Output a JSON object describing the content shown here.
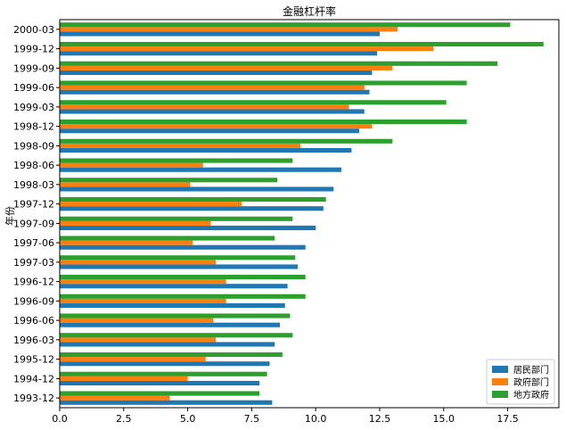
{
  "chart_data": {
    "type": "bar",
    "orientation": "horizontal",
    "title": "金融杠杆率",
    "xlabel": "",
    "ylabel": "年份",
    "xlim": [
      0,
      19.5
    ],
    "xticks": [
      "0.0",
      "2.5",
      "5.0",
      "7.5",
      "10.0",
      "12.5",
      "15.0",
      "17.5"
    ],
    "grid": false,
    "legend_position": "bottom-right",
    "categories": [
      "1993-12",
      "1994-12",
      "1995-12",
      "1996-03",
      "1996-06",
      "1996-09",
      "1996-12",
      "1997-03",
      "1997-06",
      "1997-09",
      "1997-12",
      "1998-03",
      "1998-06",
      "1998-09",
      "1998-12",
      "1999-03",
      "1999-06",
      "1999-09",
      "1999-12",
      "2000-03"
    ],
    "series": [
      {
        "name": "居民部门",
        "color": "#1f77b4",
        "values": [
          8.3,
          7.8,
          8.2,
          8.4,
          8.6,
          8.8,
          8.9,
          9.3,
          9.6,
          10.0,
          10.3,
          10.7,
          11.0,
          11.4,
          11.7,
          11.9,
          12.1,
          12.2,
          12.4,
          12.5
        ]
      },
      {
        "name": "政府部门",
        "color": "#ff7f0e",
        "values": [
          4.3,
          5.0,
          5.7,
          6.1,
          6.0,
          6.5,
          6.5,
          6.1,
          5.2,
          5.9,
          7.1,
          5.1,
          5.6,
          9.4,
          12.2,
          11.3,
          11.9,
          13.0,
          14.6,
          13.2
        ]
      },
      {
        "name": "地方政府",
        "color": "#2ca02c",
        "values": [
          7.8,
          8.1,
          8.7,
          9.1,
          9.0,
          9.6,
          9.6,
          9.2,
          8.4,
          9.1,
          10.4,
          8.5,
          9.1,
          13.0,
          15.9,
          15.1,
          15.9,
          17.1,
          18.9,
          17.6
        ]
      }
    ]
  }
}
